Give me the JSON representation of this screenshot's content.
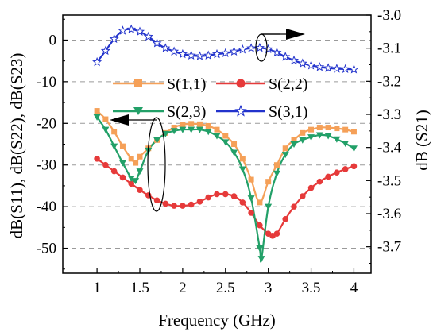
{
  "chart_data": {
    "type": "line",
    "xlabel": "Frequency (GHz)",
    "ylabel_left": "dB(S11), dB(S22), dB(S23)",
    "ylabel_right": "dB (S21)",
    "xlim": [
      0.6,
      4.2
    ],
    "ylim_left": [
      -56,
      6
    ],
    "ylim_right": [
      -3.78,
      -3.0
    ],
    "x_ticks": [
      1,
      1.5,
      2,
      2.5,
      3,
      3.5,
      4
    ],
    "x_tick_labels": [
      "1",
      "1.5",
      "2",
      "2.5",
      "3",
      "3.5",
      "4"
    ],
    "y_left_ticks": [
      0,
      -10,
      -20,
      -30,
      -40,
      -50
    ],
    "y_left_tick_labels": [
      "0",
      "-10",
      "-20",
      "-30",
      "-40",
      "-50"
    ],
    "y_right_ticks": [
      -3.0,
      -3.1,
      -3.2,
      -3.3,
      -3.4,
      -3.5,
      -3.6,
      -3.7
    ],
    "y_right_tick_labels": [
      "-3.0",
      "-3.1",
      "-3.2",
      "-3.3",
      "-3.4",
      "-3.5",
      "-3.6",
      "-3.7"
    ],
    "grid": "horizontal dashed",
    "series": [
      {
        "name": "S(1,1)",
        "axis": "left",
        "color": "#f5a058",
        "marker": "square",
        "x": [
          1.0,
          1.1,
          1.2,
          1.3,
          1.4,
          1.45,
          1.5,
          1.6,
          1.7,
          1.8,
          1.9,
          2.0,
          2.1,
          2.2,
          2.3,
          2.4,
          2.5,
          2.6,
          2.7,
          2.8,
          2.9,
          3.0,
          3.1,
          3.2,
          3.3,
          3.4,
          3.5,
          3.6,
          3.7,
          3.8,
          3.9,
          4.0
        ],
        "y": [
          -17,
          -19,
          -22,
          -25.5,
          -28.5,
          -29.5,
          -28,
          -26,
          -24,
          -22.3,
          -21,
          -20.3,
          -20.1,
          -20.2,
          -20.6,
          -21.5,
          -23,
          -25,
          -28.5,
          -33.5,
          -39,
          -34,
          -30,
          -26,
          -24,
          -22.3,
          -21.5,
          -21,
          -21,
          -21.2,
          -21.5,
          -22
        ]
      },
      {
        "name": "S(2,2)",
        "axis": "left",
        "color": "#e63a3a",
        "marker": "circle",
        "x": [
          1.0,
          1.1,
          1.2,
          1.3,
          1.4,
          1.5,
          1.6,
          1.7,
          1.8,
          1.9,
          2.0,
          2.1,
          2.2,
          2.3,
          2.4,
          2.5,
          2.6,
          2.7,
          2.8,
          2.9,
          3.0,
          3.05,
          3.1,
          3.2,
          3.3,
          3.4,
          3.5,
          3.6,
          3.7,
          3.8,
          3.9,
          4.0
        ],
        "y": [
          -28.5,
          -30,
          -31.5,
          -33,
          -34.5,
          -36,
          -37.3,
          -38.5,
          -39.3,
          -39.8,
          -39.8,
          -39.5,
          -38.8,
          -37.8,
          -37,
          -37,
          -37.5,
          -39,
          -41.5,
          -44.5,
          -46.5,
          -47,
          -46.5,
          -43,
          -40,
          -37.5,
          -35.5,
          -34,
          -32.8,
          -31.8,
          -31,
          -30.3
        ]
      },
      {
        "name": "S(2,3)",
        "axis": "left",
        "color": "#22a068",
        "marker": "triangle-down",
        "x": [
          1.0,
          1.1,
          1.2,
          1.3,
          1.4,
          1.45,
          1.5,
          1.6,
          1.7,
          1.8,
          1.9,
          2.0,
          2.1,
          2.2,
          2.3,
          2.4,
          2.5,
          2.6,
          2.7,
          2.8,
          2.9,
          2.92,
          3.0,
          3.1,
          3.2,
          3.3,
          3.4,
          3.5,
          3.6,
          3.7,
          3.8,
          3.9,
          4.0
        ],
        "y": [
          -18.5,
          -21.5,
          -25.5,
          -29.5,
          -33.2,
          -33.8,
          -31.5,
          -26.5,
          -24,
          -22.5,
          -21.8,
          -21.5,
          -21.5,
          -21.5,
          -22,
          -23,
          -24.5,
          -27,
          -31,
          -38,
          -50,
          -52.5,
          -40,
          -32,
          -27.5,
          -25,
          -24,
          -23.3,
          -22.8,
          -23,
          -23.8,
          -24.8,
          -26
        ]
      },
      {
        "name": "S(3,1)",
        "axis": "right",
        "color": "#2233cc",
        "marker": "star",
        "x": [
          1.0,
          1.1,
          1.2,
          1.3,
          1.4,
          1.5,
          1.6,
          1.7,
          1.8,
          1.9,
          2.0,
          2.1,
          2.2,
          2.3,
          2.4,
          2.5,
          2.6,
          2.7,
          2.8,
          2.9,
          3.0,
          3.1,
          3.2,
          3.3,
          3.4,
          3.5,
          3.6,
          3.7,
          3.8,
          3.9,
          4.0
        ],
        "y": [
          -3.142,
          -3.108,
          -3.072,
          -3.047,
          -3.043,
          -3.05,
          -3.065,
          -3.085,
          -3.1,
          -3.11,
          -3.118,
          -3.122,
          -3.124,
          -3.122,
          -3.118,
          -3.115,
          -3.11,
          -3.104,
          -3.1,
          -3.099,
          -3.103,
          -3.113,
          -3.126,
          -3.137,
          -3.146,
          -3.152,
          -3.157,
          -3.16,
          -3.162,
          -3.163,
          -3.164
        ]
      }
    ]
  }
}
